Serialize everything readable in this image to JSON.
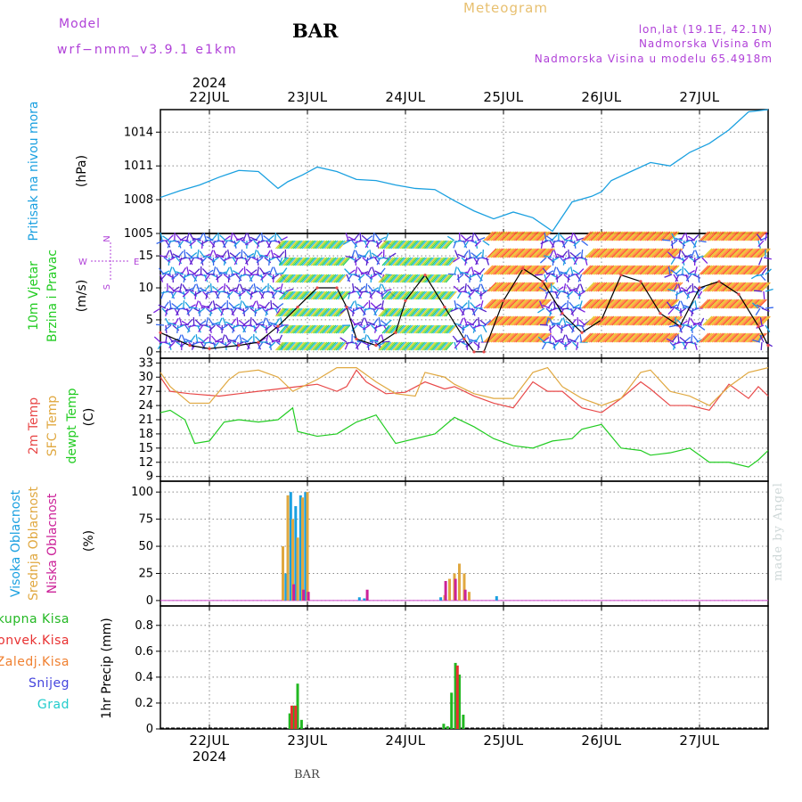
{
  "header": {
    "model_label": "Model",
    "model_name": "wrf−nmm_v3.9.1  e1km",
    "station": "BAR",
    "title": "Meteogram",
    "coords": "lon,lat (19.1E, 42.1N)",
    "elevation": "Nadmorska Visina 6m",
    "model_elevation": "Nadmorska Visina u modelu 65.4918m"
  },
  "footer": {
    "station": "BAR",
    "watermark": "made by Angel"
  },
  "colors": {
    "pressure": "#1aa0e0",
    "temp2m": "#e84848",
    "sfc": "#e0a840",
    "dewpt": "#22cc22",
    "high_cloud": "#1aa0e0",
    "mid_cloud": "#e0a840",
    "low_cloud": "#cc2299",
    "total_precip": "#22b822",
    "conv_precip": "#e83030",
    "frz_precip": "#f08030",
    "snow": "#4444dd",
    "graupel": "#22cccc",
    "wind_speed": "#000000",
    "wind_calm": "#7a22e0"
  },
  "x_axis": {
    "year": "2024",
    "day_labels": [
      "22JUL",
      "23JUL",
      "24JUL",
      "25JUL",
      "26JUL",
      "27JUL"
    ],
    "day_starts": [
      0.5,
      1.5,
      2.5,
      3.5,
      4.5,
      5.5
    ],
    "range": [
      0,
      6.2
    ]
  },
  "chart_data": [
    {
      "type": "line",
      "id": "pressure",
      "ylabel": "(hPa)",
      "side_labels": [
        "Pritisak na nivou mora"
      ],
      "unit_label": "(hPa)",
      "ylim": [
        1005,
        1016
      ],
      "yticks": [
        1005,
        1008,
        1011,
        1014
      ],
      "series": [
        {
          "name": "Pritisak na nivou mora",
          "x": [
            0,
            0.2,
            0.4,
            0.6,
            0.8,
            1.0,
            1.2,
            1.3,
            1.45,
            1.6,
            1.8,
            2.0,
            2.2,
            2.4,
            2.6,
            2.8,
            3.0,
            3.2,
            3.4,
            3.6,
            3.8,
            4.0,
            4.2,
            4.4,
            4.5,
            4.6,
            4.8,
            5.0,
            5.2,
            5.4,
            5.6,
            5.8,
            6.0,
            6.2
          ],
          "y": [
            1008.2,
            1008.8,
            1009.3,
            1010.0,
            1010.6,
            1010.5,
            1009.0,
            1009.6,
            1010.2,
            1010.9,
            1010.5,
            1009.8,
            1009.7,
            1009.3,
            1009.0,
            1008.9,
            1007.9,
            1007.0,
            1006.3,
            1006.9,
            1006.4,
            1005.2,
            1007.8,
            1008.3,
            1008.7,
            1009.7,
            1010.5,
            1011.3,
            1011.0,
            1012.2,
            1013.0,
            1014.2,
            1015.8,
            1016.0
          ]
        }
      ]
    },
    {
      "type": "scatter",
      "id": "wind",
      "side_labels": [
        "10m Vjetar",
        "Brzina i Pravac"
      ],
      "unit_label": "(m/s)",
      "compass": {
        "n": "N",
        "s": "S",
        "e": "E",
        "w": "W"
      },
      "ylim": [
        -1,
        18.5
      ],
      "yticks": [
        0,
        5,
        10,
        15
      ],
      "series": [
        {
          "name": "Brzina",
          "x": [
            0.0,
            0.3,
            0.5,
            0.8,
            1.0,
            1.2,
            1.4,
            1.6,
            1.8,
            1.9,
            2.0,
            2.2,
            2.4,
            2.5,
            2.7,
            2.9,
            3.1,
            3.2,
            3.3,
            3.5,
            3.7,
            3.9,
            4.1,
            4.3,
            4.5,
            4.7,
            4.9,
            5.1,
            5.3,
            5.5,
            5.7,
            5.9,
            6.1,
            6.2
          ],
          "y": [
            3,
            1,
            0.5,
            1,
            1.5,
            4,
            7,
            10,
            10,
            7,
            2,
            1,
            3,
            8,
            12,
            7,
            2,
            0,
            0,
            8,
            13,
            11,
            6,
            3,
            5,
            12,
            11,
            6,
            4,
            10,
            11,
            9,
            4,
            1
          ]
        }
      ],
      "regimes": [
        {
          "from": 0,
          "to": 1.25,
          "kind": "calm"
        },
        {
          "from": 1.25,
          "to": 1.9,
          "kind": "moderate"
        },
        {
          "from": 1.9,
          "to": 2.3,
          "kind": "calm"
        },
        {
          "from": 2.3,
          "to": 3.0,
          "kind": "moderate"
        },
        {
          "from": 3.0,
          "to": 3.3,
          "kind": "calm"
        },
        {
          "from": 3.3,
          "to": 3.9,
          "kind": "strong"
        },
        {
          "from": 3.9,
          "to": 4.3,
          "kind": "calm"
        },
        {
          "from": 4.3,
          "to": 5.2,
          "kind": "strong"
        },
        {
          "from": 5.2,
          "to": 5.5,
          "kind": "calm"
        },
        {
          "from": 5.5,
          "to": 6.1,
          "kind": "strong"
        },
        {
          "from": 6.1,
          "to": 6.2,
          "kind": "calm"
        }
      ]
    },
    {
      "type": "line",
      "id": "temperature",
      "side_labels": [
        "2m Temp",
        "SFC Temp",
        "dewpt Temp"
      ],
      "unit_label": "(C)",
      "ylim": [
        8,
        34
      ],
      "yticks": [
        9,
        12,
        15,
        18,
        21,
        24,
        27,
        30,
        33
      ],
      "series": [
        {
          "name": "2m Temp",
          "x": [
            0,
            0.1,
            0.3,
            0.6,
            0.8,
            1.0,
            1.2,
            1.4,
            1.6,
            1.8,
            1.9,
            2.0,
            2.1,
            2.3,
            2.5,
            2.7,
            2.9,
            3.0,
            3.2,
            3.4,
            3.6,
            3.8,
            3.95,
            4.1,
            4.3,
            4.5,
            4.7,
            4.9,
            5.0,
            5.2,
            5.4,
            5.6,
            5.8,
            6.0,
            6.1,
            6.2
          ],
          "y": [
            30,
            27,
            26.5,
            26,
            26.5,
            27,
            27.5,
            28,
            28.5,
            27,
            28,
            31.5,
            29,
            26.5,
            26.8,
            29,
            27.5,
            28,
            26,
            24.5,
            23.5,
            29,
            27,
            27,
            23.5,
            22.5,
            25.5,
            29,
            27.5,
            24,
            24,
            23,
            28.5,
            25.5,
            28,
            26
          ]
        },
        {
          "name": "SFC Temp",
          "x": [
            0,
            0.1,
            0.3,
            0.5,
            0.7,
            0.8,
            1.0,
            1.2,
            1.35,
            1.6,
            1.8,
            2.0,
            2.2,
            2.4,
            2.6,
            2.7,
            2.9,
            3.0,
            3.2,
            3.4,
            3.6,
            3.8,
            3.95,
            4.1,
            4.3,
            4.5,
            4.7,
            4.9,
            5.0,
            5.2,
            5.4,
            5.6,
            5.8,
            6.0,
            6.2
          ],
          "y": [
            31,
            28,
            24.5,
            24.5,
            29.5,
            31,
            31.5,
            30,
            27,
            29.5,
            32,
            32,
            29,
            26.5,
            26,
            31,
            30,
            28.5,
            26.5,
            25.5,
            25.5,
            31,
            32,
            28,
            25.5,
            24,
            25.5,
            31,
            31.5,
            27,
            26,
            24,
            28,
            31,
            32
          ]
        },
        {
          "name": "dewpt Temp",
          "x": [
            0,
            0.1,
            0.25,
            0.35,
            0.5,
            0.65,
            0.8,
            1.0,
            1.2,
            1.35,
            1.4,
            1.6,
            1.8,
            2.0,
            2.2,
            2.4,
            2.6,
            2.8,
            3.0,
            3.2,
            3.4,
            3.6,
            3.8,
            4.0,
            4.2,
            4.3,
            4.5,
            4.7,
            4.9,
            5.0,
            5.2,
            5.4,
            5.6,
            5.8,
            6.0,
            6.1,
            6.2
          ],
          "y": [
            22.5,
            23,
            21,
            16,
            16.5,
            20.5,
            21,
            20.5,
            21,
            23.5,
            18.5,
            17.5,
            18,
            20.5,
            22,
            16,
            17,
            18,
            21.5,
            19.5,
            17,
            15.5,
            15,
            16.5,
            17,
            19,
            20,
            15,
            14.5,
            13.5,
            14,
            15,
            12,
            12,
            11,
            12.5,
            14.5
          ]
        }
      ]
    },
    {
      "type": "bar",
      "id": "cloud",
      "side_labels": [
        "Visoka Oblacnost",
        "Srednja Oblacnost",
        "Niska Oblacnost"
      ],
      "unit_label": "(%)",
      "ylim": [
        -5,
        110
      ],
      "yticks": [
        0,
        25,
        50,
        75,
        100
      ],
      "series": [
        {
          "name": "Visoka Oblacnost",
          "x": [
            1.28,
            1.33,
            1.38,
            1.43,
            1.48,
            2.03,
            2.08,
            2.86,
            3.43
          ],
          "values": [
            25,
            100,
            87,
            97,
            100,
            3,
            2,
            3,
            4
          ]
        },
        {
          "name": "Srednja Oblacnost",
          "x": [
            1.25,
            1.3,
            1.35,
            1.4,
            1.45,
            1.5,
            2.9,
            2.95,
            3.0,
            3.05,
            3.1,
            3.15
          ],
          "values": [
            50,
            97,
            75,
            58,
            95,
            100,
            5,
            20,
            25,
            34,
            25,
            8
          ]
        },
        {
          "name": "Niska Oblacnost",
          "x": [
            1.36,
            1.46,
            1.51,
            2.11,
            2.91,
            3.01,
            3.11
          ],
          "values": [
            15,
            10,
            8,
            10,
            18,
            20,
            10
          ]
        }
      ]
    },
    {
      "type": "bar",
      "id": "precip",
      "side_labels": [
        "Ukupna Kisa",
        "Konvek.Kisa",
        "Zaledj.Kisa",
        "Snijeg",
        "Grad"
      ],
      "ylabel": "1hr Precip (mm)",
      "unit_label": "1hr Precip (mm)",
      "ylim": [
        0,
        0.95
      ],
      "yticks": [
        0,
        0.2,
        0.4,
        0.6,
        0.8
      ],
      "series": [
        {
          "name": "Ukupna Kisa",
          "x": [
            1.32,
            1.36,
            1.4,
            1.44,
            2.89,
            2.93,
            2.97,
            3.01,
            3.05,
            3.09
          ],
          "values": [
            0.12,
            0.18,
            0.35,
            0.07,
            0.04,
            0.02,
            0.28,
            0.51,
            0.42,
            0.11
          ]
        },
        {
          "name": "Konvek.Kisa",
          "x": [
            1.34,
            1.38,
            3.03
          ],
          "values": [
            0.18,
            0.18,
            0.49
          ]
        }
      ]
    }
  ]
}
